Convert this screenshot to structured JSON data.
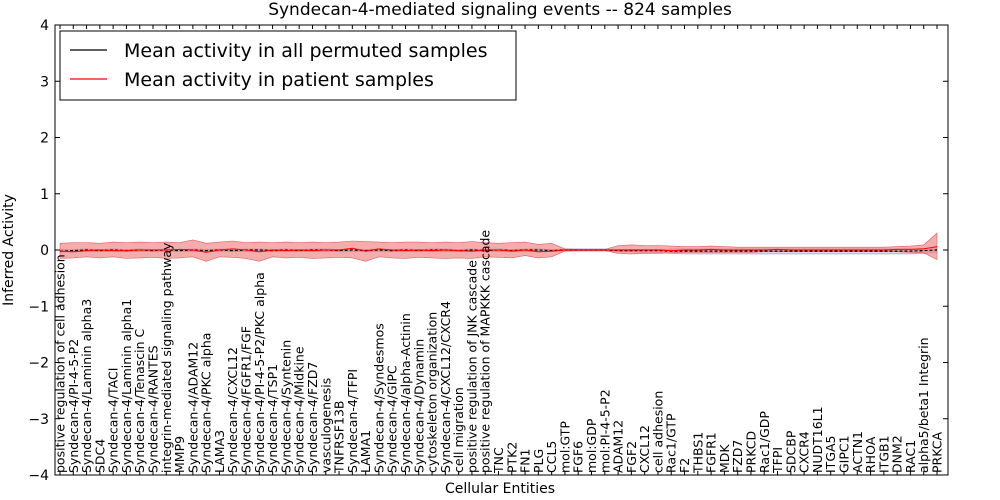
{
  "chart_data": {
    "type": "line",
    "title": "Syndecan-4-mediated signaling events -- 824 samples",
    "xlabel": "Cellular Entities",
    "ylabel": "Inferred Activity",
    "ylim": [
      -4,
      4
    ],
    "yticks": [
      "4",
      "3",
      "2",
      "1",
      "0",
      "−1",
      "−2",
      "−3",
      "−4"
    ],
    "grid": false,
    "legend_position": "top-left",
    "categories": [
      "positive regulation of cell adhesion",
      "Syndecan-4/PI-4-5-P2",
      "Syndecan-4/Laminin alpha3",
      "SDC4",
      "Syndecan-4/TACI",
      "Syndecan-4/Laminin alpha1",
      "Syndecan-4/Tenascin C",
      "Syndecan-4/RANTES",
      "integrin-mediated signaling pathway",
      "MMP9",
      "Syndecan-4/ADAM12",
      "Syndecan-4/PKC alpha",
      "LAMA3",
      "Syndecan-4/CXCL12",
      "Syndecan-4/FGFR1/FGF",
      "Syndecan-4/PI-4-5-P2/PKC alpha",
      "Syndecan-4/TSP1",
      "Syndecan-4/Syntenin",
      "Syndecan-4/Midkine",
      "Syndecan-4/FZD7",
      "vasculogenesis",
      "TNFRSF13B",
      "Syndecan-4/TFPI",
      "LAMA1",
      "Syndecan-4/Syndesmos",
      "Syndecan-4/GIPC",
      "Syndecan-4/alpha-Actinin",
      "Syndecan-4/Dynamin",
      "cytoskeleton organization",
      "Syndecan-4/CXCL12/CXCR4",
      "cell migration",
      "positive regulation of JNK cascade",
      "positive regulation of MAPKKK cascade",
      "TNC",
      "PTK2",
      "FN1",
      "PLG",
      "CCL5",
      "mol:GTP",
      "FGF6",
      "mol:GDP",
      "mol:PI-4-5-P2",
      "ADAM12",
      "FGF2",
      "CXCL12",
      "cell adhesion",
      "Rac1/GTP",
      "F2",
      "THBS1",
      "FGFR1",
      "MDK",
      "FZD7",
      "PRKCD",
      "Rac1/GDP",
      "TFPI",
      "SDCBP",
      "CXCR4",
      "NUDT16L1",
      "ITGA5",
      "GIPC1",
      "ACTN1",
      "RHOA",
      "ITGB1",
      "DNM2",
      "RAC1",
      "alpha5/beta1 Integrin",
      "PRKCA"
    ],
    "series": [
      {
        "name": "Mean activity in all permuted samples",
        "color": "#000000",
        "values": [
          -0.02,
          -0.01,
          0.0,
          -0.01,
          0.0,
          -0.01,
          0.0,
          -0.01,
          0.0,
          -0.01,
          0.0,
          -0.01,
          0.0,
          -0.01,
          0.0,
          0.0,
          -0.01,
          0.0,
          -0.01,
          0.0,
          0.0,
          -0.01,
          0.0,
          -0.01,
          0.0,
          -0.01,
          0.0,
          -0.01,
          0.0,
          0.0,
          -0.01,
          0.0,
          -0.01,
          0.0,
          -0.01,
          0.0,
          0.0,
          -0.01,
          0.0,
          0.0,
          0.0,
          0.0,
          -0.01,
          -0.01,
          -0.01,
          -0.01,
          -0.02,
          -0.02,
          -0.02,
          -0.02,
          -0.02,
          -0.02,
          -0.02,
          -0.02,
          -0.02,
          -0.02,
          -0.02,
          -0.02,
          -0.02,
          -0.02,
          -0.02,
          -0.02,
          -0.02,
          -0.02,
          -0.02,
          -0.01,
          0.0
        ],
        "band_lower": [
          -0.04,
          -0.03,
          -0.03,
          -0.03,
          -0.03,
          -0.03,
          -0.03,
          -0.03,
          -0.03,
          -0.03,
          -0.03,
          -0.03,
          -0.03,
          -0.03,
          -0.03,
          -0.03,
          -0.03,
          -0.03,
          -0.03,
          -0.03,
          -0.03,
          -0.03,
          -0.03,
          -0.03,
          -0.03,
          -0.03,
          -0.03,
          -0.03,
          -0.03,
          -0.03,
          -0.03,
          -0.03,
          -0.03,
          -0.03,
          -0.03,
          -0.03,
          -0.03,
          -0.03,
          -0.02,
          -0.02,
          -0.02,
          -0.02,
          -0.03,
          -0.03,
          -0.04,
          -0.04,
          -0.06,
          -0.07,
          -0.07,
          -0.07,
          -0.07,
          -0.07,
          -0.07,
          -0.07,
          -0.07,
          -0.07,
          -0.07,
          -0.07,
          -0.07,
          -0.07,
          -0.07,
          -0.07,
          -0.07,
          -0.07,
          -0.07,
          -0.06,
          -0.04
        ],
        "band_upper": [
          0.01,
          0.01,
          0.02,
          0.01,
          0.02,
          0.01,
          0.02,
          0.01,
          0.02,
          0.01,
          0.02,
          0.01,
          0.02,
          0.01,
          0.02,
          0.02,
          0.01,
          0.02,
          0.01,
          0.02,
          0.02,
          0.01,
          0.02,
          0.01,
          0.02,
          0.01,
          0.02,
          0.01,
          0.02,
          0.02,
          0.01,
          0.02,
          0.01,
          0.02,
          0.01,
          0.02,
          0.02,
          0.01,
          0.02,
          0.02,
          0.02,
          0.02,
          0.01,
          0.01,
          0.01,
          0.01,
          0.02,
          0.02,
          0.02,
          0.02,
          0.02,
          0.02,
          0.02,
          0.02,
          0.02,
          0.02,
          0.02,
          0.02,
          0.02,
          0.02,
          0.02,
          0.02,
          0.02,
          0.02,
          0.02,
          0.03,
          0.04
        ]
      },
      {
        "name": "Mean activity in patient samples",
        "color": "#ff0000",
        "values": [
          -0.02,
          -0.03,
          -0.01,
          0.0,
          -0.01,
          -0.01,
          0.0,
          0.0,
          0.0,
          0.01,
          0.0,
          -0.04,
          0.0,
          0.02,
          0.0,
          -0.03,
          0.0,
          -0.01,
          0.0,
          -0.01,
          0.0,
          0.0,
          0.03,
          -0.02,
          0.02,
          0.0,
          -0.01,
          0.0,
          -0.01,
          0.0,
          -0.01,
          -0.02,
          0.0,
          0.0,
          -0.02,
          0.0,
          -0.03,
          -0.02,
          0.0,
          0.0,
          0.0,
          0.0,
          0.0,
          0.0,
          0.0,
          0.0,
          -0.01,
          0.0,
          0.0,
          0.01,
          0.0,
          0.0,
          0.0,
          0.0,
          0.01,
          0.0,
          0.0,
          0.0,
          0.0,
          0.0,
          0.0,
          0.0,
          0.0,
          0.01,
          0.01,
          0.02,
          0.06
        ],
        "band_lower": [
          -0.15,
          -0.14,
          -0.12,
          -0.14,
          -0.12,
          -0.15,
          -0.14,
          -0.13,
          -0.15,
          -0.14,
          -0.12,
          -0.2,
          -0.12,
          -0.13,
          -0.15,
          -0.2,
          -0.12,
          -0.14,
          -0.13,
          -0.15,
          -0.14,
          -0.13,
          -0.14,
          -0.2,
          -0.12,
          -0.14,
          -0.15,
          -0.13,
          -0.14,
          -0.15,
          -0.14,
          -0.15,
          -0.12,
          -0.13,
          -0.14,
          -0.1,
          -0.14,
          -0.12,
          -0.02,
          -0.01,
          -0.01,
          -0.01,
          -0.06,
          -0.07,
          -0.06,
          -0.06,
          -0.05,
          -0.04,
          -0.04,
          -0.04,
          -0.04,
          -0.04,
          -0.04,
          -0.03,
          -0.03,
          -0.03,
          -0.03,
          -0.03,
          -0.03,
          -0.03,
          -0.03,
          -0.03,
          -0.03,
          -0.03,
          -0.04,
          -0.05,
          -0.17
        ],
        "band_upper": [
          0.12,
          0.13,
          0.13,
          0.12,
          0.14,
          0.13,
          0.14,
          0.13,
          0.14,
          0.13,
          0.18,
          0.12,
          0.14,
          0.16,
          0.13,
          0.14,
          0.13,
          0.14,
          0.13,
          0.14,
          0.13,
          0.14,
          0.16,
          0.15,
          0.14,
          0.13,
          0.14,
          0.14,
          0.13,
          0.14,
          0.13,
          0.15,
          0.13,
          0.12,
          0.13,
          0.14,
          0.1,
          0.12,
          0.02,
          0.01,
          0.01,
          0.01,
          0.08,
          0.09,
          0.08,
          0.08,
          0.07,
          0.06,
          0.06,
          0.07,
          0.06,
          0.05,
          0.05,
          0.05,
          0.05,
          0.05,
          0.05,
          0.05,
          0.05,
          0.05,
          0.05,
          0.05,
          0.05,
          0.06,
          0.07,
          0.09,
          0.3
        ]
      }
    ]
  }
}
